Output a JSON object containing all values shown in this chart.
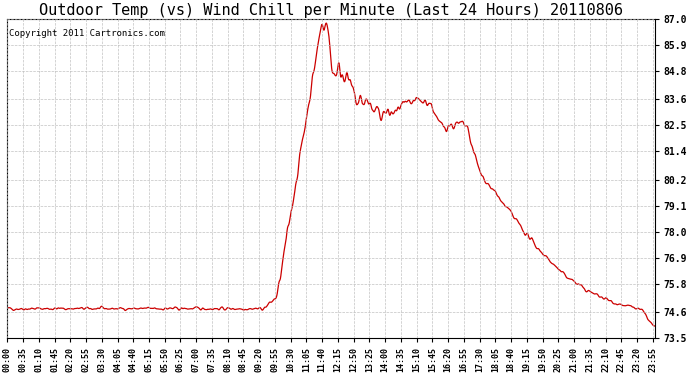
{
  "title": "Outdoor Temp (vs) Wind Chill per Minute (Last 24 Hours) 20110806",
  "copyright": "Copyright 2011 Cartronics.com",
  "ylim": [
    73.5,
    87.0
  ],
  "yticks": [
    73.5,
    74.6,
    75.8,
    76.9,
    78.0,
    79.1,
    80.2,
    81.4,
    82.5,
    83.6,
    84.8,
    85.9,
    87.0
  ],
  "line_color": "#cc0000",
  "line_width": 0.9,
  "bg_color": "#ffffff",
  "grid_color": "#bbbbbb",
  "title_fontsize": 11,
  "copyright_fontsize": 6.5,
  "xtick_fontsize": 6.0,
  "ytick_fontsize": 7.0
}
